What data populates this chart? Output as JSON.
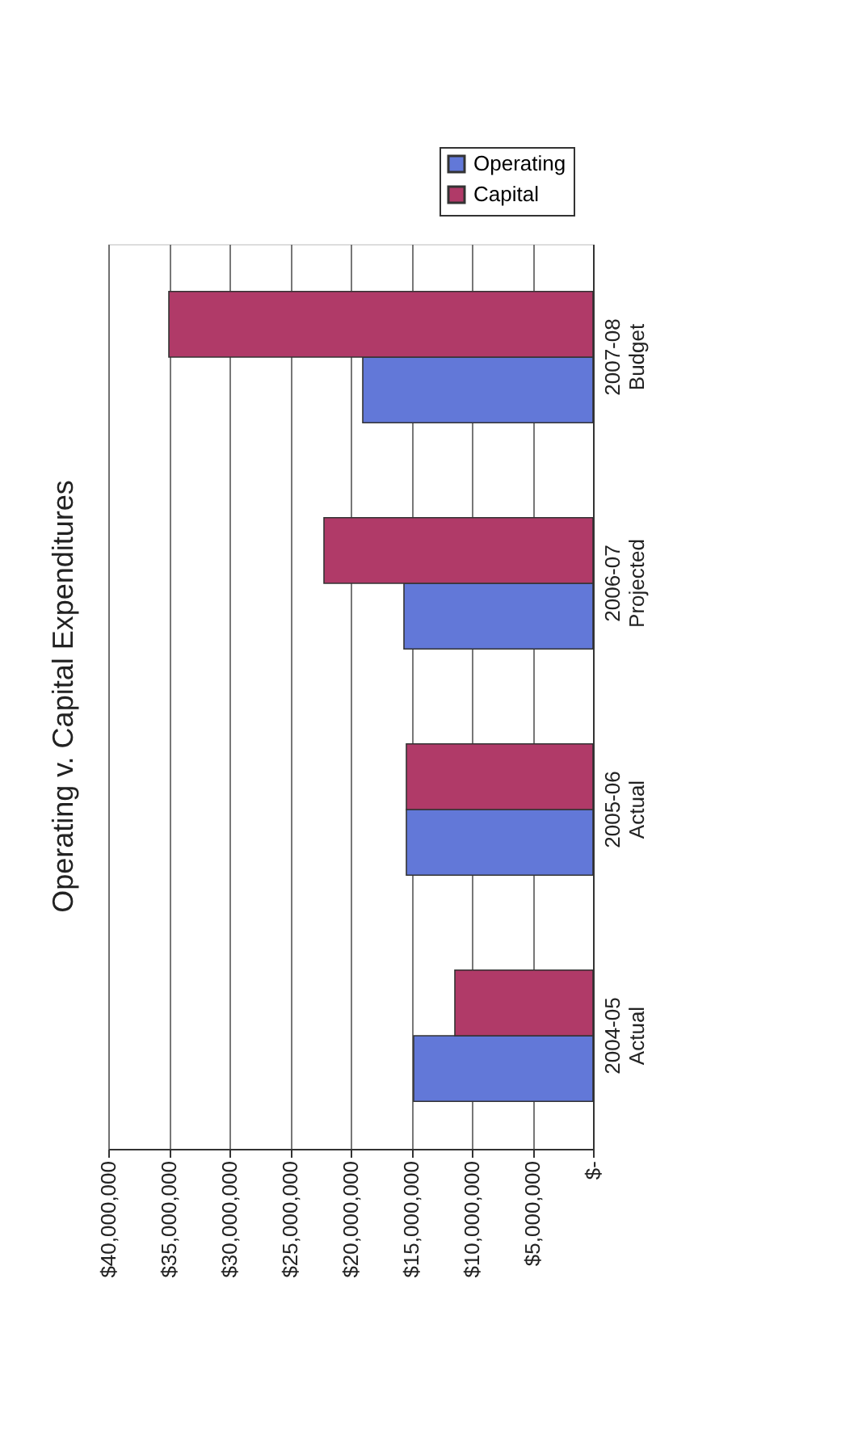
{
  "chart_data": {
    "type": "bar",
    "title": "Operating v. Capital Expenditures",
    "orientation": "horizontal",
    "categories": [
      "2007-08\nBudget",
      "2006-07\nProjected",
      "2005-06\nActual",
      "2004-05\nActual"
    ],
    "series": [
      {
        "name": "Operating",
        "color": "#6278d8",
        "values": [
          19000000,
          15600000,
          15400000,
          14800000
        ]
      },
      {
        "name": "Capital",
        "color": "#b03a68",
        "values": [
          35000000,
          22200000,
          15400000,
          11400000
        ]
      }
    ],
    "xlim": [
      40000000,
      0
    ],
    "xticks": [
      {
        "value": 40000000,
        "label": "$40,000,000"
      },
      {
        "value": 35000000,
        "label": "$35,000,000"
      },
      {
        "value": 30000000,
        "label": "$30,000,000"
      },
      {
        "value": 25000000,
        "label": "$25,000,000"
      },
      {
        "value": 20000000,
        "label": "$20,000,000"
      },
      {
        "value": 15000000,
        "label": "$15,000,000"
      },
      {
        "value": 10000000,
        "label": "$10,000,000"
      },
      {
        "value": 5000000,
        "label": "$5,000,000"
      },
      {
        "value": 0,
        "label": "$-"
      }
    ],
    "grid": "x",
    "legend": "top right"
  }
}
